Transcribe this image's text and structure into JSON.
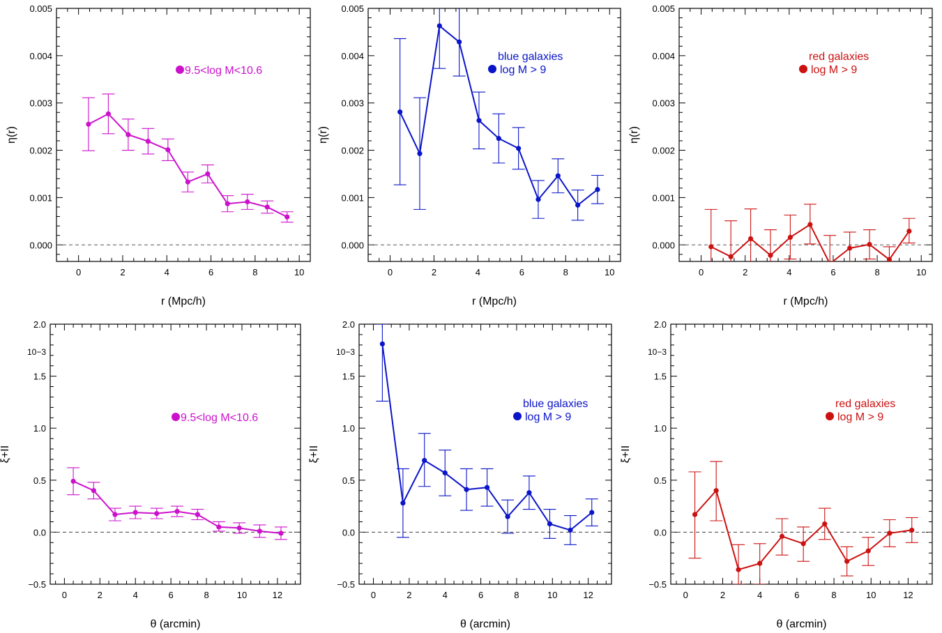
{
  "figure": {
    "description": ""
  },
  "chart_data": [
    {
      "type": "line",
      "panel": "top-left",
      "xlabel": "r (Mpc/h)",
      "ylabel": "η(r)",
      "xlim": [
        -1,
        10.5
      ],
      "ylim": [
        -0.00035,
        0.005
      ],
      "xticks": [
        0,
        2,
        4,
        6,
        8,
        10
      ],
      "xtick_labels": [
        "0",
        "2",
        "4",
        "6",
        "8",
        "10"
      ],
      "yticks": [
        0,
        0.001,
        0.002,
        0.003,
        0.004,
        0.005
      ],
      "ytick_labels": [
        "0.000",
        "0.001",
        "0.002",
        "0.003",
        "0.004",
        "0.005"
      ],
      "zero_line": true,
      "color": "#cc11cc",
      "legend_lines": [
        "9.5<log M<10.6"
      ],
      "series": [
        {
          "name": "9.5<log M<10.6",
          "x": [
            0.45,
            1.35,
            2.25,
            3.15,
            4.05,
            4.95,
            5.85,
            6.75,
            7.65,
            8.55,
            9.45
          ],
          "y": [
            0.00255,
            0.00277,
            0.00233,
            0.00219,
            0.00201,
            0.00133,
            0.0015,
            0.00087,
            0.00091,
            0.0008,
            0.00059
          ],
          "yerr_low": [
            0.00199,
            0.00235,
            0.002,
            0.00192,
            0.00178,
            0.00112,
            0.00131,
            0.0007,
            0.00075,
            0.00067,
            0.00048
          ],
          "yerr_high": [
            0.00311,
            0.00319,
            0.00266,
            0.00246,
            0.00224,
            0.00154,
            0.00169,
            0.00104,
            0.00107,
            0.00093,
            0.0007
          ]
        }
      ]
    },
    {
      "type": "line",
      "panel": "top-middle",
      "xlabel": "r (Mpc/h)",
      "ylabel": "η(r)",
      "xlim": [
        -1,
        10.5
      ],
      "ylim": [
        -0.00035,
        0.005
      ],
      "xticks": [
        0,
        2,
        4,
        6,
        8,
        10
      ],
      "xtick_labels": [
        "0",
        "2",
        "4",
        "6",
        "8",
        "10"
      ],
      "yticks": [
        0,
        0.001,
        0.002,
        0.003,
        0.004,
        0.005
      ],
      "ytick_labels": [
        "0.000",
        "0.001",
        "0.002",
        "0.003",
        "0.004",
        "0.005"
      ],
      "zero_line": true,
      "color": "#0a14c8",
      "legend_lines": [
        "blue galaxies",
        "log M > 9"
      ],
      "series": [
        {
          "name": "blue galaxies log M > 9",
          "x": [
            0.45,
            1.35,
            2.25,
            3.15,
            4.05,
            4.95,
            5.85,
            6.75,
            7.65,
            8.55,
            9.45
          ],
          "y": [
            0.00281,
            0.00193,
            0.00463,
            0.00429,
            0.00263,
            0.00225,
            0.00204,
            0.00096,
            0.00146,
            0.00084,
            0.00117
          ],
          "yerr_low": [
            0.00127,
            0.00075,
            0.00373,
            0.00357,
            0.00203,
            0.00173,
            0.0016,
            0.00056,
            0.0011,
            0.00052,
            0.00087
          ],
          "yerr_high": [
            0.00436,
            0.00311,
            0.00553,
            0.00501,
            0.00323,
            0.00277,
            0.00248,
            0.00136,
            0.00182,
            0.00116,
            0.00147
          ]
        }
      ]
    },
    {
      "type": "line",
      "panel": "top-right",
      "xlabel": "r (Mpc/h)",
      "ylabel": "η(r)",
      "xlim": [
        -1,
        10.5
      ],
      "ylim": [
        -0.00035,
        0.005
      ],
      "xticks": [
        0,
        2,
        4,
        6,
        8,
        10
      ],
      "xtick_labels": [
        "0",
        "2",
        "4",
        "6",
        "8",
        "10"
      ],
      "yticks": [
        0,
        0.001,
        0.002,
        0.003,
        0.004,
        0.005
      ],
      "ytick_labels": [
        "0.000",
        "0.001",
        "0.002",
        "0.003",
        "0.004",
        "0.005"
      ],
      "zero_line": true,
      "color": "#cc1111",
      "legend_lines": [
        "red galaxies",
        "log M > 9"
      ],
      "series": [
        {
          "name": "red galaxies log M > 9",
          "x": [
            0.45,
            1.35,
            2.25,
            3.15,
            4.05,
            4.95,
            5.85,
            6.75,
            7.65,
            8.55,
            9.45
          ],
          "y": [
            -4e-05,
            -0.00025,
            0.00013,
            -0.00022,
            0.00016,
            0.00043,
            -0.0004,
            -7e-05,
            1e-05,
            -0.00031,
            0.00029
          ],
          "yerr_low": [
            -0.0008,
            -0.001,
            -0.0005,
            -0.0007,
            -0.0003,
            2e-05,
            -0.001,
            -0.0004,
            -0.0003,
            -0.0006,
            4e-05
          ],
          "yerr_high": [
            0.00075,
            0.00051,
            0.00076,
            0.00032,
            0.00063,
            0.00086,
            0.0002,
            0.00027,
            0.00032,
            -4e-05,
            0.00056
          ]
        }
      ]
    },
    {
      "type": "line",
      "panel": "bottom-left",
      "xlabel": "θ (arcmin)",
      "ylabel": "ξ+II",
      "y_multiplier": "10−3",
      "xlim": [
        -0.8,
        13.3
      ],
      "ylim": [
        -0.5,
        2.0
      ],
      "xticks": [
        0,
        2,
        4,
        6,
        8,
        10,
        12
      ],
      "xtick_labels": [
        "0",
        "2",
        "4",
        "6",
        "8",
        "10",
        "12"
      ],
      "yticks": [
        -0.5,
        0,
        0.5,
        1.0,
        1.5,
        2.0
      ],
      "ytick_labels": [
        "−0.5",
        "0.0",
        "0.5",
        "1.0",
        "1.5",
        "2.0"
      ],
      "zero_line": true,
      "color": "#cc11cc",
      "legend_lines": [
        "9.5<log M<10.6"
      ],
      "series": [
        {
          "name": "9.5<log M<10.6",
          "x": [
            0.5,
            1.65,
            2.85,
            4.0,
            5.2,
            6.35,
            7.5,
            8.7,
            9.85,
            11.0,
            12.2
          ],
          "y": [
            0.49,
            0.4,
            0.17,
            0.19,
            0.18,
            0.2,
            0.17,
            0.05,
            0.04,
            0.01,
            -0.01
          ],
          "yerr_low": [
            0.36,
            0.32,
            0.11,
            0.13,
            0.13,
            0.15,
            0.12,
            0.01,
            -0.01,
            -0.05,
            -0.07
          ],
          "yerr_high": [
            0.62,
            0.48,
            0.23,
            0.25,
            0.23,
            0.25,
            0.22,
            0.1,
            0.09,
            0.07,
            0.05
          ]
        }
      ]
    },
    {
      "type": "line",
      "panel": "bottom-middle",
      "xlabel": "θ (arcmin)",
      "ylabel": "ξ+II",
      "y_multiplier": "10−3",
      "xlim": [
        -0.8,
        13.3
      ],
      "ylim": [
        -0.5,
        2.0
      ],
      "xticks": [
        0,
        2,
        4,
        6,
        8,
        10,
        12
      ],
      "xtick_labels": [
        "0",
        "2",
        "4",
        "6",
        "8",
        "10",
        "12"
      ],
      "yticks": [
        -0.5,
        0,
        0.5,
        1.0,
        1.5,
        2.0
      ],
      "ytick_labels": [
        "−0.5",
        "0.0",
        "0.5",
        "1.0",
        "1.5",
        "2.0"
      ],
      "zero_line": true,
      "color": "#0a14c8",
      "legend_lines": [
        "blue galaxies",
        "log M > 9"
      ],
      "series": [
        {
          "name": "blue galaxies log M > 9",
          "x": [
            0.5,
            1.65,
            2.85,
            4.0,
            5.2,
            6.35,
            7.5,
            8.7,
            9.85,
            11.0,
            12.2
          ],
          "y": [
            1.81,
            0.28,
            0.69,
            0.57,
            0.41,
            0.43,
            0.15,
            0.38,
            0.08,
            0.02,
            0.19
          ],
          "yerr_low": [
            1.26,
            -0.05,
            0.44,
            0.35,
            0.21,
            0.25,
            -0.01,
            0.22,
            -0.06,
            -0.12,
            0.06
          ],
          "yerr_high": [
            2.0,
            0.61,
            0.95,
            0.79,
            0.61,
            0.61,
            0.31,
            0.54,
            0.22,
            0.16,
            0.32
          ]
        }
      ]
    },
    {
      "type": "line",
      "panel": "bottom-right",
      "xlabel": "θ (arcmin)",
      "ylabel": "ξ+II",
      "y_multiplier": "10−3",
      "xlim": [
        -0.8,
        13.3
      ],
      "ylim": [
        -0.5,
        2.0
      ],
      "xticks": [
        0,
        2,
        4,
        6,
        8,
        10,
        12
      ],
      "xtick_labels": [
        "0",
        "2",
        "4",
        "6",
        "8",
        "10",
        "12"
      ],
      "yticks": [
        -0.5,
        0,
        0.5,
        1.0,
        1.5,
        2.0
      ],
      "ytick_labels": [
        "−0.5",
        "0.0",
        "0.5",
        "1.0",
        "1.5",
        "2.0"
      ],
      "zero_line": true,
      "color": "#cc1111",
      "legend_lines": [
        "red galaxies",
        "log M > 9"
      ],
      "series": [
        {
          "name": "red galaxies log M > 9",
          "x": [
            0.5,
            1.65,
            2.85,
            4.0,
            5.2,
            6.35,
            7.5,
            8.7,
            9.85,
            11.0,
            12.2
          ],
          "y": [
            0.17,
            0.4,
            -0.36,
            -0.3,
            -0.04,
            -0.11,
            0.08,
            -0.28,
            -0.18,
            -0.01,
            0.02
          ],
          "yerr_low": [
            -0.25,
            0.11,
            -0.5,
            -0.5,
            -0.22,
            -0.28,
            -0.07,
            -0.42,
            -0.32,
            -0.14,
            -0.1
          ],
          "yerr_high": [
            0.58,
            0.68,
            -0.12,
            -0.11,
            0.13,
            0.05,
            0.23,
            -0.14,
            -0.05,
            0.12,
            0.14
          ]
        }
      ]
    }
  ]
}
